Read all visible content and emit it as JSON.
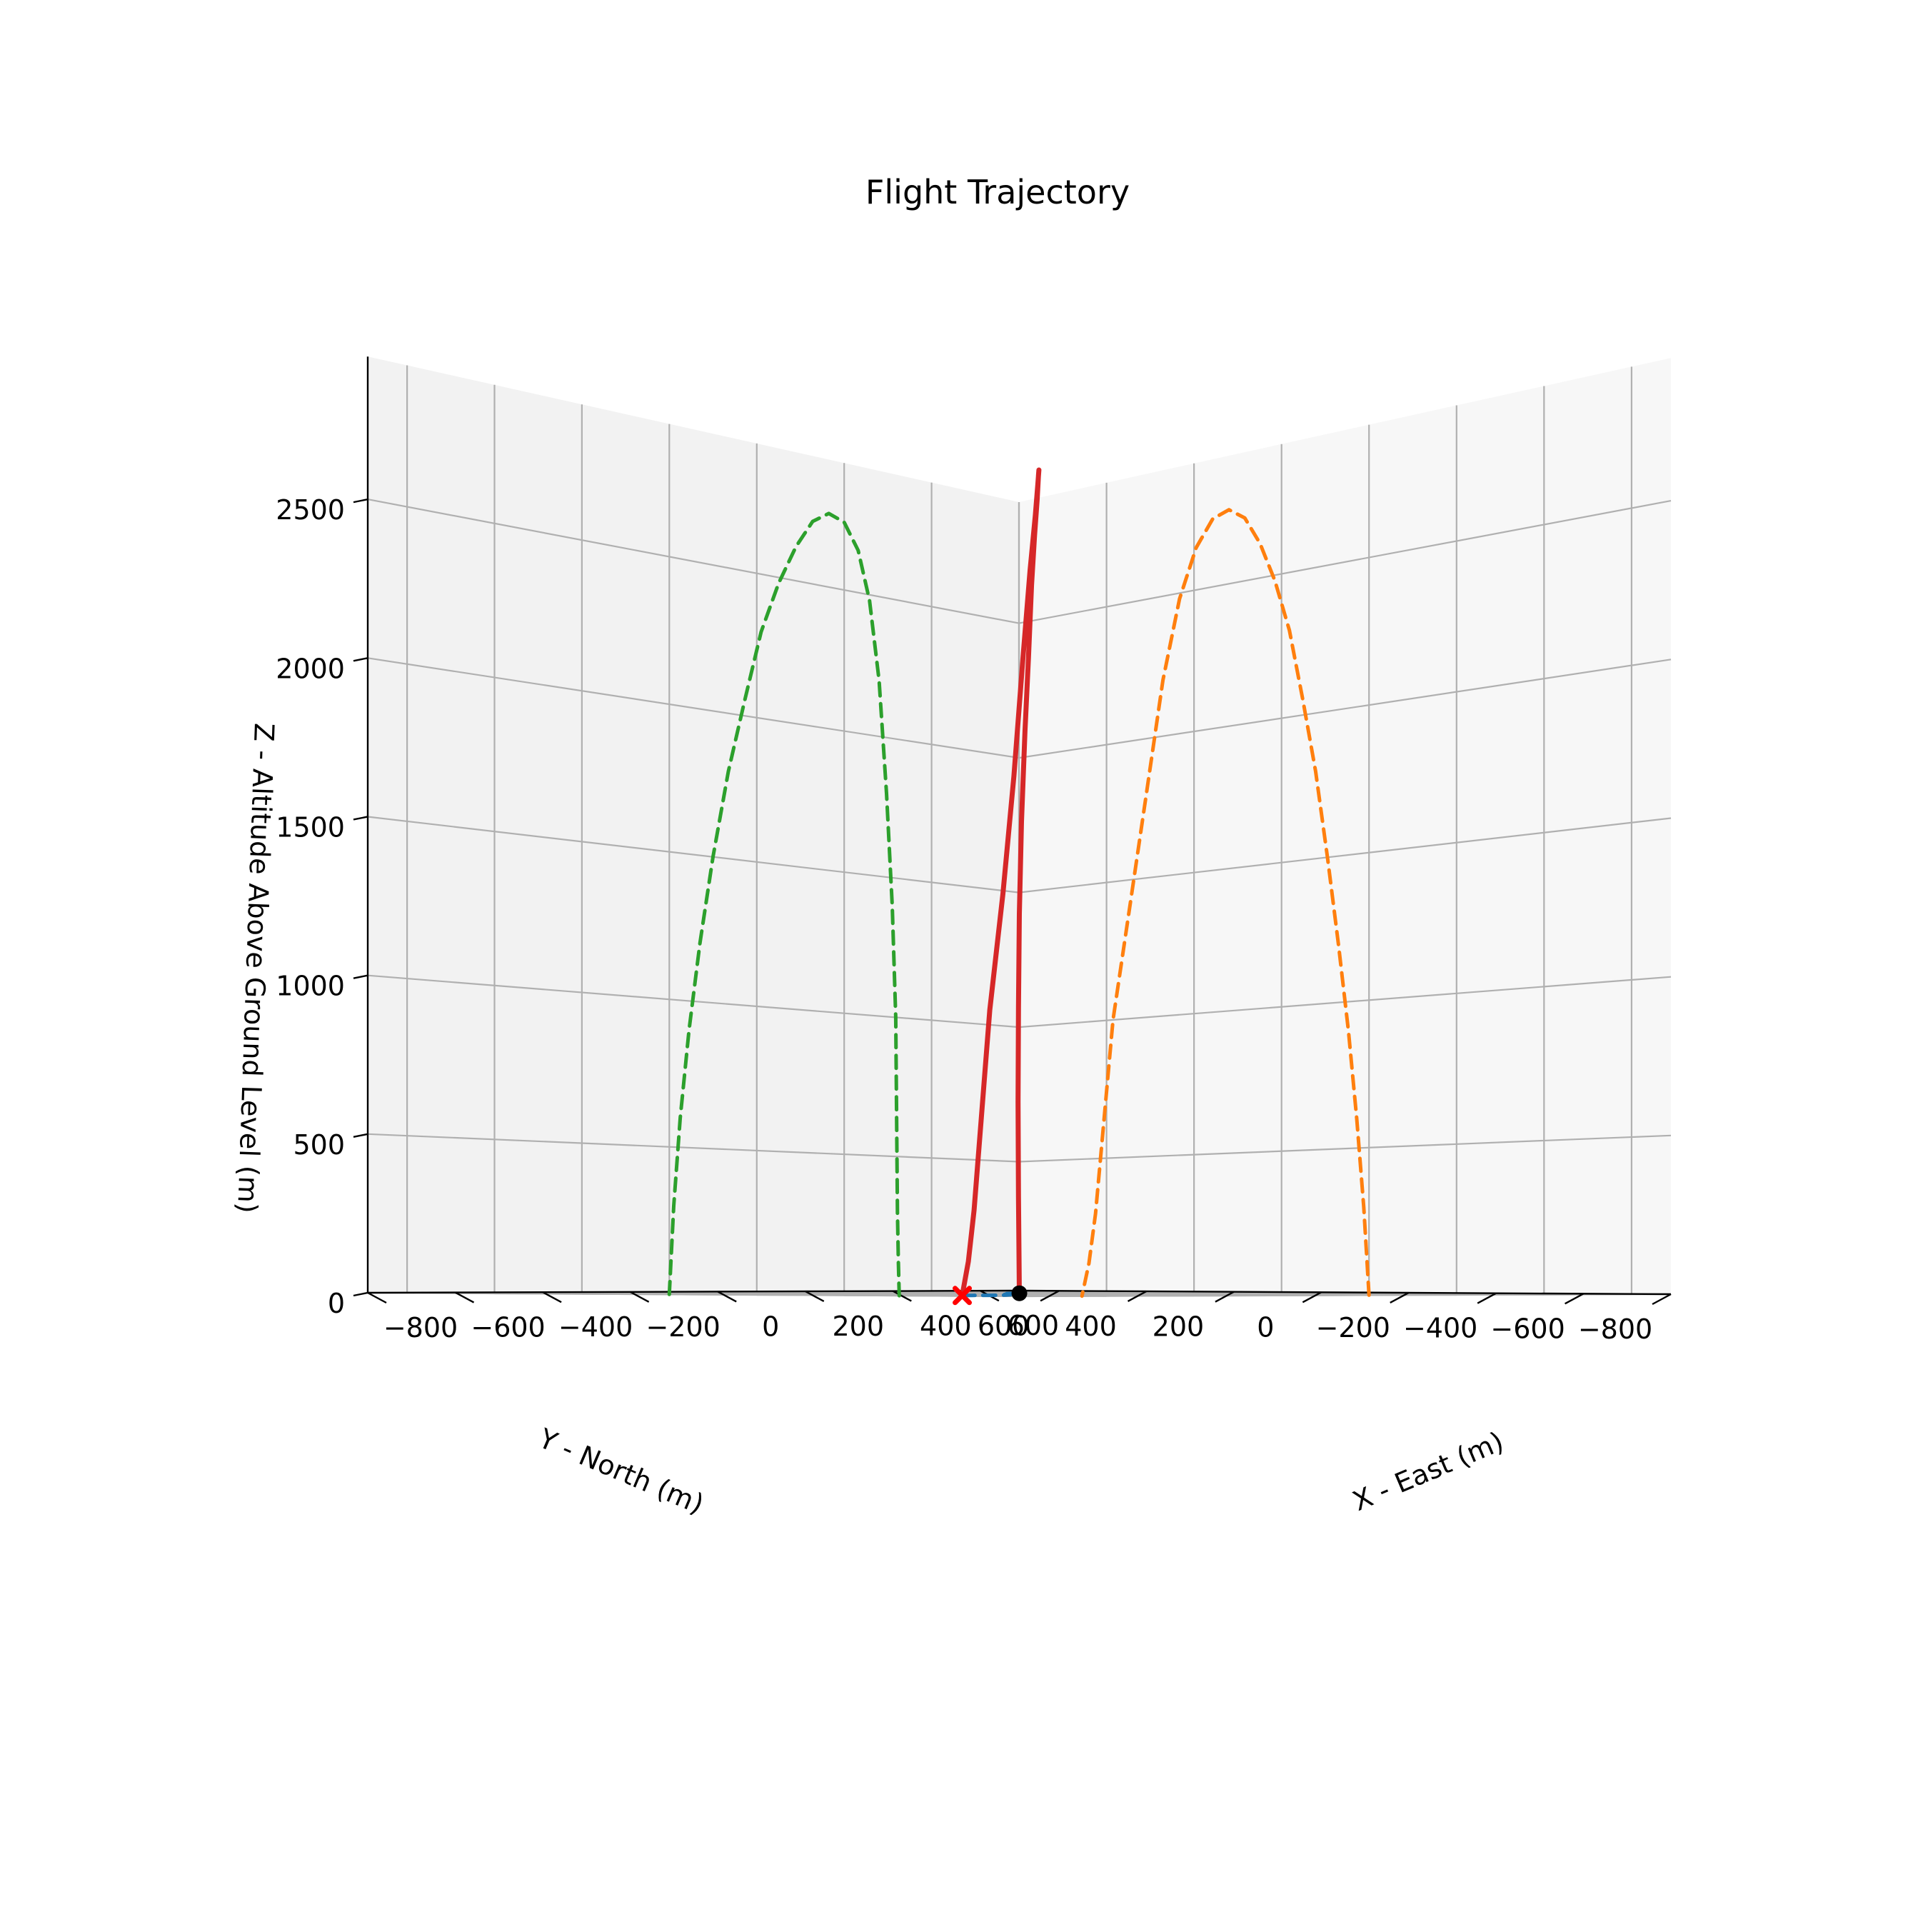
{
  "chart_data": {
    "type": "line3d",
    "title": "Flight Trajectory",
    "xlabel": "X - East (m)",
    "ylabel": "Y - North (m)",
    "zlabel": "Z - Altitude Above Ground Level (m)",
    "x_ticks": [
      "−800",
      "−600",
      "−400",
      "−200",
      "0",
      "200",
      "400",
      "600"
    ],
    "y_ticks": [
      "−800",
      "−600",
      "−400",
      "−200",
      "0",
      "200",
      "400",
      "600"
    ],
    "z_ticks": [
      "0",
      "500",
      "1000",
      "1500",
      "2000",
      "2500"
    ],
    "grid": true,
    "series": [
      {
        "role": "trajectory",
        "color": "#d62728",
        "style": "solid",
        "x": [
          0,
          -12,
          -28,
          -47,
          -70,
          -95,
          -122,
          -151,
          -182,
          -215,
          -249,
          -284,
          -320,
          -357,
          -395,
          -433,
          -471,
          -509,
          -547,
          -585,
          -625,
          -640,
          -656
        ],
        "y": [
          0,
          -10,
          -25,
          -45,
          -70,
          -100,
          -135,
          -172,
          -210,
          -250,
          -290,
          -328,
          -365,
          -400,
          -432,
          -458,
          -480,
          -497,
          -510,
          -518,
          -522,
          -524,
          -526
        ],
        "z": [
          0,
          300,
          600,
          900,
          1200,
          1500,
          1800,
          2050,
          2300,
          2480,
          2620,
          2720,
          2760,
          2740,
          2650,
          2480,
          2200,
          1800,
          1400,
          1000,
          300,
          120,
          0
        ]
      },
      {
        "role": "ground-track",
        "color": "#1f77b4",
        "style": "dashed",
        "x": [
          0,
          -50,
          -120,
          -200,
          -300,
          -400,
          -500,
          -580,
          -630,
          -656
        ],
        "y": [
          0,
          -35,
          -90,
          -160,
          -260,
          -380,
          -470,
          -510,
          -522,
          -526
        ],
        "z": [
          0,
          0,
          0,
          0,
          0,
          0,
          0,
          0,
          0,
          0
        ]
      },
      {
        "role": "projection-on-north-wall",
        "color": "#ff7f0e",
        "style": "dashed",
        "x": [
          0,
          -12,
          -28,
          -47,
          -70,
          -95,
          -122,
          -151,
          -182,
          -215,
          -249,
          -284,
          -320,
          -357,
          -395,
          -433,
          -471,
          -509,
          -547,
          -585,
          -625,
          -640,
          -656
        ],
        "y": [
          -800,
          -800,
          -800,
          -800,
          -800,
          -800,
          -800,
          -800,
          -800,
          -800,
          -800,
          -800,
          -800,
          -800,
          -800,
          -800,
          -800,
          -800,
          -800,
          -800,
          -800,
          -800,
          -800
        ],
        "z": [
          0,
          300,
          600,
          900,
          1200,
          1500,
          1800,
          2050,
          2300,
          2480,
          2620,
          2720,
          2760,
          2740,
          2650,
          2480,
          2200,
          1800,
          1400,
          1000,
          300,
          120,
          0
        ]
      },
      {
        "role": "projection-on-east-wall",
        "color": "#2ca02c",
        "style": "dashed",
        "x": [
          -800,
          -800,
          -800,
          -800,
          -800,
          -800,
          -800,
          -800,
          -800,
          -800,
          -800,
          -800,
          -800,
          -800,
          -800,
          -800,
          -800,
          -800,
          -800,
          -800,
          -800,
          -800,
          -800
        ],
        "y": [
          0,
          -10,
          -25,
          -45,
          -70,
          -100,
          -135,
          -172,
          -210,
          -250,
          -290,
          -328,
          -365,
          -400,
          -432,
          -458,
          -480,
          -497,
          -510,
          -518,
          -522,
          -524,
          -526
        ],
        "z": [
          0,
          300,
          600,
          900,
          1200,
          1500,
          1800,
          2050,
          2300,
          2480,
          2620,
          2720,
          2760,
          2740,
          2650,
          2480,
          2200,
          1800,
          1400,
          1000,
          300,
          120,
          0
        ]
      }
    ],
    "markers": [
      {
        "role": "launch-point",
        "x": 0,
        "y": 0,
        "z": 0,
        "color": "#000000",
        "symbol": "circle"
      },
      {
        "role": "landing-point",
        "x": -656,
        "y": -526,
        "z": 0,
        "color": "#ff0000",
        "symbol": "x"
      }
    ]
  }
}
